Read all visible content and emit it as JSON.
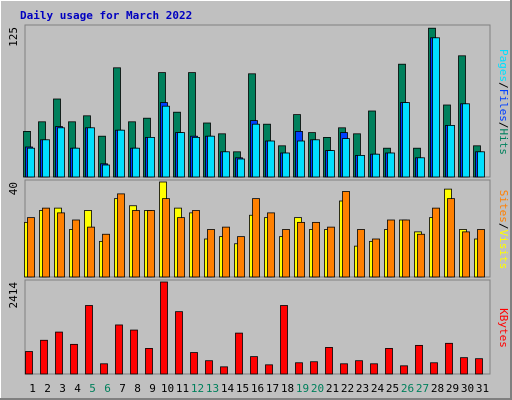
{
  "chart_data": [
    {
      "type": "bar",
      "title": "Daily usage for March 2022",
      "ylim": [
        0,
        125
      ],
      "yticks": [
        125
      ],
      "legend_separator": "/",
      "series": [
        {
          "name": "Hits",
          "color": "#00805c",
          "values": [
            38,
            46,
            65,
            46,
            51,
            34,
            91,
            46,
            49,
            87,
            54,
            87,
            45,
            36,
            21,
            86,
            44,
            26,
            52,
            37,
            33,
            41,
            36,
            55,
            24,
            94,
            24,
            124,
            60,
            101,
            26
          ]
        },
        {
          "name": "Files",
          "color": "#0040ff",
          "values": [
            25,
            31,
            42,
            24,
            41,
            11,
            39,
            24,
            33,
            62,
            37,
            34,
            34,
            21,
            16,
            47,
            30,
            20,
            38,
            31,
            22,
            37,
            18,
            19,
            20,
            62,
            16,
            116,
            43,
            61,
            21
          ]
        },
        {
          "name": "Pages",
          "color": "#00e0ff",
          "values": [
            24,
            31,
            41,
            24,
            41,
            10,
            39,
            24,
            33,
            59,
            37,
            33,
            34,
            21,
            15,
            44,
            30,
            20,
            30,
            31,
            22,
            32,
            18,
            19,
            20,
            62,
            16,
            116,
            43,
            61,
            21
          ]
        }
      ]
    },
    {
      "type": "bar",
      "ylim": [
        0,
        40
      ],
      "yticks": [
        40
      ],
      "legend_separator": "/",
      "series": [
        {
          "name": "Visits",
          "color": "#ffff00",
          "values": [
            23,
            28,
            29,
            20,
            28,
            15,
            33,
            30,
            28,
            40,
            29,
            27,
            16,
            17,
            14,
            26,
            25,
            17,
            25,
            20,
            20,
            32,
            13,
            15,
            20,
            24,
            19,
            25,
            37,
            20,
            16
          ]
        },
        {
          "name": "Sites",
          "color": "#ff8000",
          "values": [
            25,
            29,
            27,
            24,
            21,
            18,
            35,
            28,
            28,
            33,
            25,
            28,
            20,
            21,
            17,
            33,
            27,
            20,
            23,
            23,
            21,
            36,
            20,
            16,
            24,
            24,
            18,
            29,
            33,
            19,
            20
          ]
        }
      ]
    },
    {
      "type": "bar",
      "ylim": [
        0,
        2414
      ],
      "yticks": [
        2414
      ],
      "categories": [
        "1",
        "2",
        "3",
        "4",
        "5",
        "6",
        "7",
        "8",
        "9",
        "10",
        "11",
        "12",
        "13",
        "14",
        "15",
        "16",
        "17",
        "18",
        "19",
        "20",
        "21",
        "22",
        "23",
        "24",
        "25",
        "26",
        "27",
        "28",
        "29",
        "30",
        "31"
      ],
      "category_colors": [
        "#000000",
        "#000000",
        "#000000",
        "#000000",
        "#00805c",
        "#00805c",
        "#000000",
        "#000000",
        "#000000",
        "#000000",
        "#000000",
        "#00805c",
        "#00805c",
        "#000000",
        "#000000",
        "#000000",
        "#000000",
        "#000000",
        "#00805c",
        "#00805c",
        "#000000",
        "#000000",
        "#000000",
        "#000000",
        "#000000",
        "#00805c",
        "#00805c",
        "#000000",
        "#000000",
        "#000000",
        "#000000"
      ],
      "series": [
        {
          "name": "KBytes",
          "color": "#ff0000",
          "values": [
            590,
            885,
            1100,
            778,
            1797,
            268,
            1287,
            1153,
            671,
            2414,
            1636,
            563,
            349,
            188,
            1073,
            456,
            241,
            1797,
            295,
            322,
            697,
            268,
            349,
            268,
            671,
            215,
            751,
            295,
            805,
            429,
            402
          ]
        }
      ]
    }
  ]
}
